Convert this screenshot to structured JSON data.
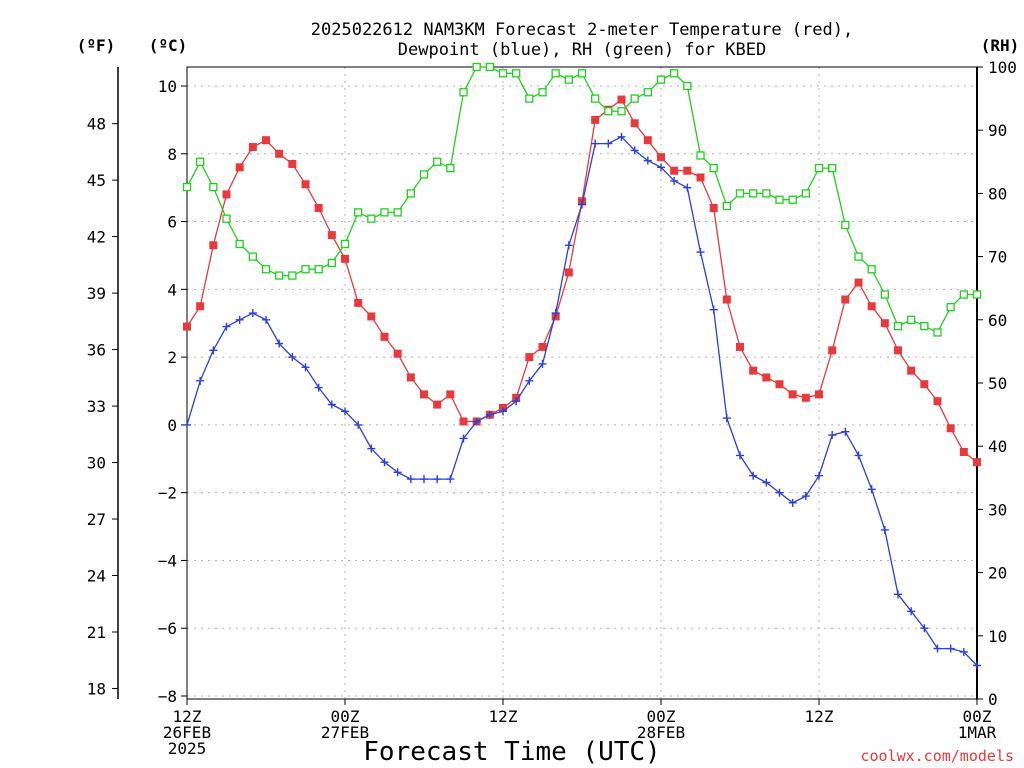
{
  "title_line1": "2025022612 NAM3KM Forecast 2-meter Temperature (red),",
  "title_line2": "Dewpoint (blue), RH (green) for KBED",
  "unit_f": "(ºF)",
  "unit_c": "(ºC)",
  "unit_rh": "(RH)",
  "xlabel": "Forecast Time (UTC)",
  "credit": "coolwx.com/models",
  "colors": {
    "temperature": "#e8393c",
    "dewpoint": "#2b3fdc",
    "rh": "#1fd11f",
    "grid": "#b4b4b4"
  },
  "chart_data": {
    "type": "line",
    "x_hours": [
      0,
      1,
      2,
      3,
      4,
      5,
      6,
      7,
      8,
      9,
      10,
      11,
      12,
      13,
      14,
      15,
      16,
      17,
      18,
      19,
      20,
      21,
      22,
      23,
      24,
      25,
      26,
      27,
      28,
      29,
      30,
      31,
      32,
      33,
      34,
      35,
      36,
      37,
      38,
      39,
      40,
      41,
      42,
      43,
      44,
      45,
      46,
      47,
      48,
      49,
      50,
      51,
      52,
      53,
      54,
      55,
      56,
      57,
      58,
      59,
      60
    ],
    "x_ticks": [
      {
        "hour": 0,
        "lines": [
          "12Z",
          "26FEB",
          "2025"
        ]
      },
      {
        "hour": 12,
        "lines": [
          "00Z",
          "27FEB"
        ]
      },
      {
        "hour": 24,
        "lines": [
          "12Z"
        ]
      },
      {
        "hour": 36,
        "lines": [
          "00Z",
          "28FEB"
        ]
      },
      {
        "hour": 48,
        "lines": [
          "12Z"
        ]
      },
      {
        "hour": 60,
        "lines": [
          "00Z",
          "1MAR"
        ]
      }
    ],
    "xlim": [
      0,
      60
    ],
    "ylim_c": [
      -8,
      10.5
    ],
    "y_ticks_c": [
      "10",
      "8",
      "6",
      "4",
      "2",
      "0",
      "−2",
      "−4",
      "−6",
      "−8"
    ],
    "y_ticks_f": [
      "48",
      "45",
      "42",
      "39",
      "36",
      "33",
      "30",
      "27",
      "24",
      "21",
      "18"
    ],
    "ylim_rh": [
      0,
      100
    ],
    "y_ticks_rh": [
      "100",
      "90",
      "80",
      "70",
      "60",
      "50",
      "40",
      "30",
      "20",
      "10",
      "0"
    ],
    "grid": true,
    "series": [
      {
        "name": "Temperature",
        "axis": "c",
        "marker": "filled-square",
        "values": [
          2.9,
          3.5,
          5.3,
          6.8,
          7.6,
          8.2,
          8.4,
          8.0,
          7.7,
          7.1,
          6.4,
          5.6,
          4.9,
          3.6,
          3.2,
          2.6,
          2.1,
          1.4,
          0.9,
          0.6,
          0.9,
          0.1,
          0.1,
          0.3,
          0.5,
          0.8,
          2.0,
          2.3,
          3.2,
          4.5,
          6.6,
          9.0,
          9.3,
          9.6,
          8.9,
          8.4,
          7.9,
          7.5,
          7.5,
          7.3,
          6.4,
          3.7,
          2.3,
          1.6,
          1.4,
          1.2,
          0.9,
          0.8,
          0.9,
          2.2,
          3.7,
          4.2,
          3.5,
          3.0,
          2.2,
          1.6,
          1.2,
          0.7,
          -0.1,
          -0.8,
          -1.1
        ]
      },
      {
        "name": "Dewpoint",
        "axis": "c",
        "marker": "plus",
        "values": [
          0.0,
          1.3,
          2.2,
          2.9,
          3.1,
          3.3,
          3.1,
          2.4,
          2.0,
          1.7,
          1.1,
          0.6,
          0.4,
          0.0,
          -0.7,
          -1.1,
          -1.4,
          -1.6,
          -1.6,
          -1.6,
          -1.6,
          -0.4,
          0.1,
          0.3,
          0.4,
          0.7,
          1.3,
          1.8,
          3.3,
          5.3,
          6.5,
          8.3,
          8.3,
          8.5,
          8.1,
          7.8,
          7.6,
          7.2,
          7.0,
          5.1,
          3.4,
          0.2,
          -0.9,
          -1.5,
          -1.7,
          -2.0,
          -2.3,
          -2.1,
          -1.5,
          -0.3,
          -0.2,
          -0.9,
          -1.9,
          -3.1,
          -5.0,
          -5.5,
          -6.0,
          -6.6,
          -6.6,
          -6.7,
          -7.1
        ]
      },
      {
        "name": "RH",
        "axis": "rh",
        "marker": "open-square",
        "values": [
          81,
          85,
          81,
          76,
          72,
          70,
          68,
          67,
          67,
          68,
          68,
          69,
          72,
          77,
          76,
          77,
          77,
          80,
          83,
          85,
          84,
          96,
          100,
          100,
          99,
          99,
          95,
          96,
          99,
          98,
          99,
          95,
          93,
          93,
          95,
          96,
          98,
          99,
          97,
          86,
          84,
          78,
          80,
          80,
          80,
          79,
          79,
          80,
          84,
          84,
          75,
          70,
          68,
          64,
          59,
          60,
          59,
          58,
          62,
          64,
          64
        ]
      }
    ]
  }
}
